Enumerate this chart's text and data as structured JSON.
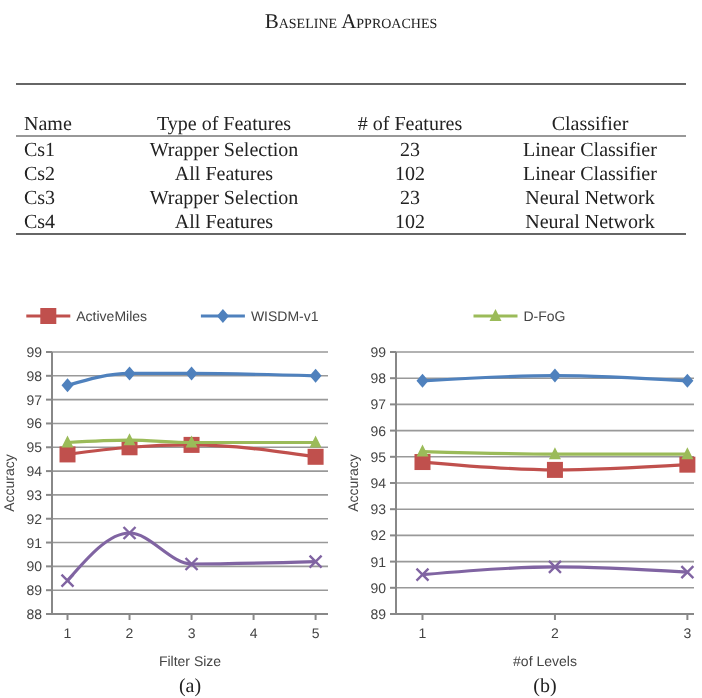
{
  "chart_data": [
    {
      "type": "other",
      "title": "Baseline Approaches",
      "categories": [
        "Name",
        "Type of Features",
        "# of Features",
        "Classifier"
      ],
      "cell_labels": [
        [
          "Cs1",
          "Wrapper Selection",
          "23",
          "Linear Classifier"
        ],
        [
          "Cs2",
          "All Features",
          "102",
          "Linear Classifier"
        ],
        [
          "Cs3",
          "Wrapper Selection",
          "23",
          "Neural Network"
        ],
        [
          "Cs4",
          "All Features",
          "102",
          "Neural Network"
        ]
      ]
    },
    {
      "type": "line",
      "x": [
        1,
        2,
        3,
        5
      ],
      "xlim": [
        0.75,
        5.2
      ],
      "xticks": [
        1,
        2,
        3,
        4,
        5
      ],
      "ylim": [
        88,
        99
      ],
      "yticks": [
        88,
        89,
        90,
        91,
        92,
        93,
        94,
        95,
        96,
        97,
        98,
        99
      ],
      "xlabel": "Filter Size",
      "ylabel": "Accuracy",
      "grid": "y",
      "legend": "top",
      "annotations": [
        "(a)"
      ],
      "series": [
        {
          "name": "ActiveMiles",
          "color": "#c0504d",
          "marker": "square",
          "values": [
            94.7,
            95.0,
            95.1,
            94.6
          ]
        },
        {
          "name": "WISDM-v1",
          "color": "#4f81bd",
          "marker": "diamond",
          "values": [
            97.6,
            98.1,
            98.1,
            98.0
          ]
        },
        {
          "color": "#9bbb59",
          "marker": "triangle",
          "values": [
            95.2,
            95.3,
            95.2,
            95.2
          ]
        },
        {
          "color": "#8064a2",
          "marker": "cross",
          "values": [
            89.4,
            91.4,
            90.1,
            90.2
          ]
        }
      ]
    },
    {
      "type": "line",
      "categories": [
        "1",
        "2",
        "3"
      ],
      "ylim": [
        89,
        99
      ],
      "yticks": [
        89,
        90,
        91,
        92,
        93,
        94,
        95,
        96,
        97,
        98,
        99
      ],
      "xlabel": "#of Levels",
      "ylabel": "Accuracy",
      "grid": "y",
      "legend": "top",
      "annotations": [
        "(b)"
      ],
      "series": [
        {
          "color": "#c0504d",
          "marker": "square",
          "values": [
            94.8,
            94.5,
            94.7
          ]
        },
        {
          "color": "#4f81bd",
          "marker": "diamond",
          "values": [
            97.9,
            98.1,
            97.9
          ]
        },
        {
          "name": "D-FoG",
          "color": "#9bbb59",
          "marker": "triangle",
          "values": [
            95.2,
            95.1,
            95.1
          ]
        },
        {
          "color": "#8064a2",
          "marker": "cross",
          "values": [
            90.5,
            90.8,
            90.6
          ]
        }
      ]
    }
  ]
}
